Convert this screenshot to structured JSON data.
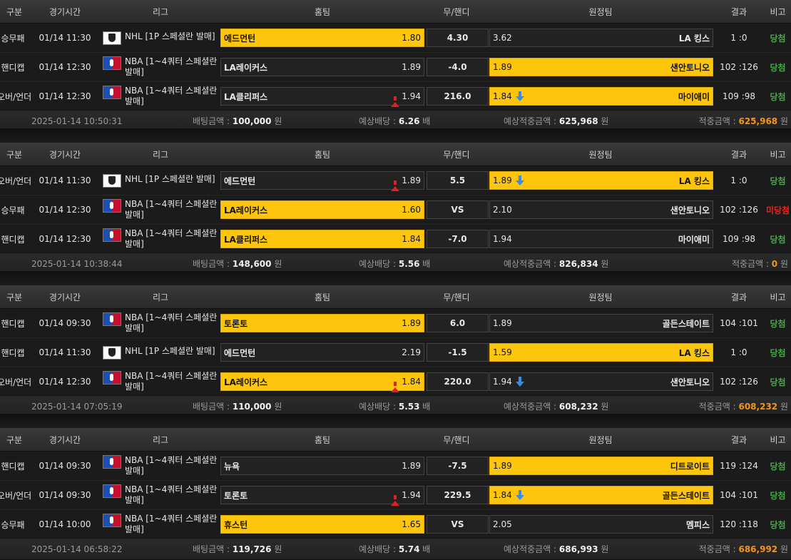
{
  "headers": {
    "type": "구분",
    "time": "경기시간",
    "league": "리그",
    "home": "홈팀",
    "draw": "무/핸디",
    "away": "원정팀",
    "result": "결과",
    "note": "비고"
  },
  "footer_labels": {
    "bet": "배팅금액 : ",
    "odds": "예상배당 : ",
    "expected": "예상적중금액 : ",
    "win": "적중금액 : ",
    "won_unit": " 원",
    "odds_unit": " 배"
  },
  "tickets": [
    {
      "rows": [
        {
          "type": "승무패",
          "time": "01/14 11:30",
          "league_icon": "nhl-logo-icon",
          "league": "NHL [1P 스페셜란 발매]",
          "home": "에드먼턴",
          "home_odd": "1.80",
          "home_sel": true,
          "home_arrow": "",
          "draw": "4.30",
          "away": "LA 킹스",
          "away_odd": "3.62",
          "away_sel": false,
          "away_arrow": "",
          "result": "1 :0",
          "note": "당첨",
          "note_state": "win"
        },
        {
          "type": "핸디캡",
          "time": "01/14 12:30",
          "league_icon": "nba-logo-icon",
          "league": "NBA [1~4쿼터 스페셜란 발매]",
          "home": "LA레이커스",
          "home_odd": "1.89",
          "home_sel": false,
          "home_arrow": "",
          "draw": "-4.0",
          "away": "샌안토니오",
          "away_odd": "1.89",
          "away_sel": true,
          "away_arrow": "",
          "result": "102 :126",
          "note": "당첨",
          "note_state": "win"
        },
        {
          "type": "오버/언더",
          "time": "01/14 12:30",
          "league_icon": "nba-logo-icon",
          "league": "NBA [1~4쿼터 스페셜란 발매]",
          "home": "LA클리퍼스",
          "home_odd": "1.94",
          "home_sel": false,
          "home_arrow": "up",
          "draw": "216.0",
          "away": "마이애미",
          "away_odd": "1.84",
          "away_sel": true,
          "away_arrow": "down",
          "result": "109 :98",
          "note": "당첨",
          "note_state": "win"
        }
      ],
      "footer": {
        "date": "2025-01-14 10:50:31",
        "bet": "100,000",
        "odds": "6.26",
        "expected": "625,968",
        "win": "625,968"
      }
    },
    {
      "rows": [
        {
          "type": "오버/언더",
          "time": "01/14 11:30",
          "league_icon": "nhl-logo-icon",
          "league": "NHL [1P 스페셜란 발매]",
          "home": "에드먼턴",
          "home_odd": "1.89",
          "home_sel": false,
          "home_arrow": "up",
          "draw": "5.5",
          "away": "LA 킹스",
          "away_odd": "1.89",
          "away_sel": true,
          "away_arrow": "down",
          "result": "1 :0",
          "note": "당첨",
          "note_state": "win"
        },
        {
          "type": "승무패",
          "time": "01/14 12:30",
          "league_icon": "nba-logo-icon",
          "league": "NBA [1~4쿼터 스페셜란 발매]",
          "home": "LA레이커스",
          "home_odd": "1.60",
          "home_sel": true,
          "home_arrow": "",
          "draw": "VS",
          "away": "샌안토니오",
          "away_odd": "2.10",
          "away_sel": false,
          "away_arrow": "",
          "result": "102 :126",
          "note": "미당첨",
          "note_state": "lose"
        },
        {
          "type": "핸디캡",
          "time": "01/14 12:30",
          "league_icon": "nba-logo-icon",
          "league": "NBA [1~4쿼터 스페셜란 발매]",
          "home": "LA클리퍼스",
          "home_odd": "1.84",
          "home_sel": true,
          "home_arrow": "",
          "draw": "-7.0",
          "away": "마이애미",
          "away_odd": "1.94",
          "away_sel": false,
          "away_arrow": "",
          "result": "109 :98",
          "note": "당첨",
          "note_state": "win"
        }
      ],
      "footer": {
        "date": "2025-01-14 10:38:44",
        "bet": "148,600",
        "odds": "5.56",
        "expected": "826,834",
        "win": "0"
      }
    },
    {
      "rows": [
        {
          "type": "핸디캡",
          "time": "01/14 09:30",
          "league_icon": "nba-logo-icon",
          "league": "NBA [1~4쿼터 스페셜란 발매]",
          "home": "토론토",
          "home_odd": "1.89",
          "home_sel": true,
          "home_arrow": "",
          "draw": "6.0",
          "away": "골든스테이트",
          "away_odd": "1.89",
          "away_sel": false,
          "away_arrow": "",
          "result": "104 :101",
          "note": "당첨",
          "note_state": "win"
        },
        {
          "type": "핸디캡",
          "time": "01/14 11:30",
          "league_icon": "nhl-logo-icon",
          "league": "NHL [1P 스페셜란 발매]",
          "home": "에드먼턴",
          "home_odd": "2.19",
          "home_sel": false,
          "home_arrow": "",
          "draw": "-1.5",
          "away": "LA 킹스",
          "away_odd": "1.59",
          "away_sel": true,
          "away_arrow": "",
          "result": "1 :0",
          "note": "당첨",
          "note_state": "win"
        },
        {
          "type": "오버/언더",
          "time": "01/14 12:30",
          "league_icon": "nba-logo-icon",
          "league": "NBA [1~4쿼터 스페셜란 발매]",
          "home": "LA레이커스",
          "home_odd": "1.84",
          "home_sel": true,
          "home_arrow": "up",
          "draw": "220.0",
          "away": "샌안토니오",
          "away_odd": "1.94",
          "away_sel": false,
          "away_arrow": "down",
          "result": "102 :126",
          "note": "당첨",
          "note_state": "win"
        }
      ],
      "footer": {
        "date": "2025-01-14 07:05:19",
        "bet": "110,000",
        "odds": "5.53",
        "expected": "608,232",
        "win": "608,232"
      }
    },
    {
      "rows": [
        {
          "type": "핸디캡",
          "time": "01/14 09:30",
          "league_icon": "nba-logo-icon",
          "league": "NBA [1~4쿼터 스페셜란 발매]",
          "home": "뉴욕",
          "home_odd": "1.89",
          "home_sel": false,
          "home_arrow": "",
          "draw": "-7.5",
          "away": "디트로이트",
          "away_odd": "1.89",
          "away_sel": true,
          "away_arrow": "",
          "result": "119 :124",
          "note": "당첨",
          "note_state": "win"
        },
        {
          "type": "오버/언더",
          "time": "01/14 09:30",
          "league_icon": "nba-logo-icon",
          "league": "NBA [1~4쿼터 스페셜란 발매]",
          "home": "토론토",
          "home_odd": "1.94",
          "home_sel": false,
          "home_arrow": "up",
          "draw": "229.5",
          "away": "골든스테이트",
          "away_odd": "1.84",
          "away_sel": true,
          "away_arrow": "down",
          "result": "104 :101",
          "note": "당첨",
          "note_state": "win"
        },
        {
          "type": "승무패",
          "time": "01/14 10:00",
          "league_icon": "nba-logo-icon",
          "league": "NBA [1~4쿼터 스페셜란 발매]",
          "home": "휴스턴",
          "home_odd": "1.65",
          "home_sel": true,
          "home_arrow": "",
          "draw": "VS",
          "away": "멤피스",
          "away_odd": "2.05",
          "away_sel": false,
          "away_arrow": "",
          "result": "120 :118",
          "note": "당첨",
          "note_state": "win"
        }
      ],
      "footer": {
        "date": "2025-01-14 06:58:22",
        "bet": "119,726",
        "odds": "5.74",
        "expected": "686,993",
        "win": "686,992"
      }
    }
  ],
  "colors": {
    "selected": "#fdc60d",
    "win": "#3fae3f",
    "lose": "#e8251f",
    "hit_amount": "#f7941d",
    "arrow_up": "#e02020",
    "arrow_down": "#3a8ae6"
  }
}
